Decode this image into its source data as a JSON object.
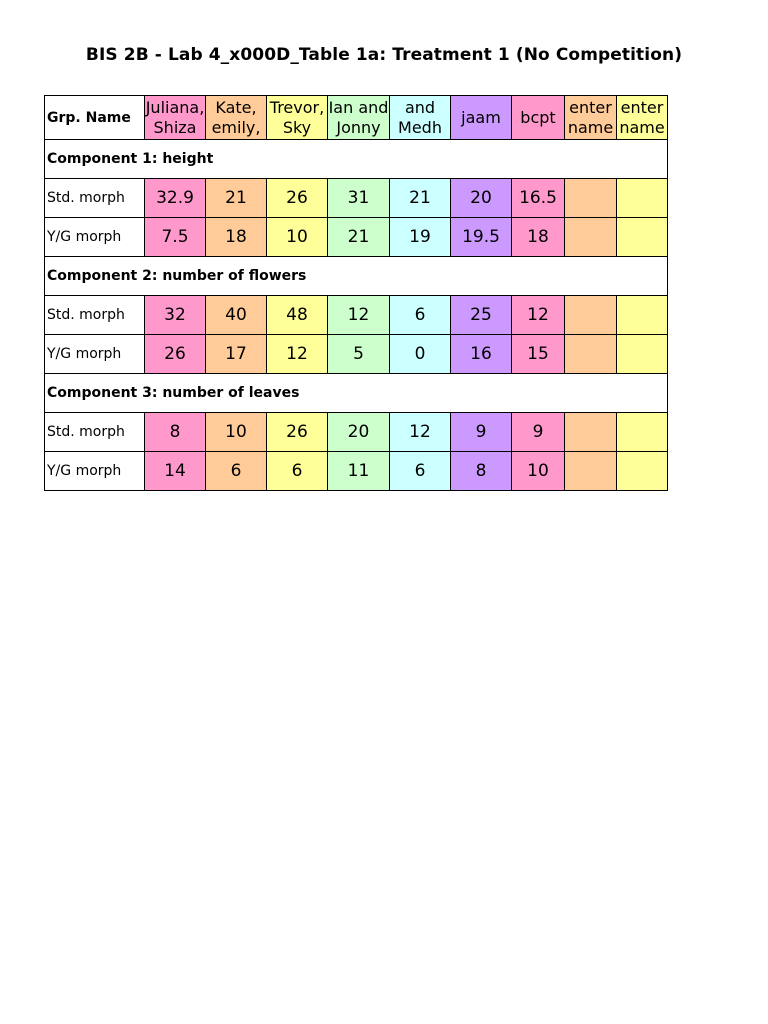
{
  "title": "BIS 2B - Lab 4_x000D_Table 1a: Treatment 1 (No Competition)",
  "header_label": "Grp. Name",
  "groups": [
    {
      "name": "Juliana, Shiza",
      "color": "#ff99cc"
    },
    {
      "name": "Kate, emily,",
      "color": "#ffcc99"
    },
    {
      "name": "Trevor, Sky",
      "color": "#ffff99"
    },
    {
      "name": "Ian and Jonny",
      "color": "#ccffcc"
    },
    {
      "name": "and Medh",
      "color": "#ccffff"
    },
    {
      "name": "jaam",
      "color": "#cc99ff"
    },
    {
      "name": "bcpt",
      "color": "#ff99cc"
    },
    {
      "name": "enter name",
      "color": "#ffcc99"
    },
    {
      "name": "enter name",
      "color": "#ffff99"
    }
  ],
  "components": [
    {
      "title": "Component 1: height",
      "rows": [
        {
          "label": "Std. morph",
          "values": [
            "32.9",
            "21",
            "26",
            "31",
            "21",
            "20",
            "16.5",
            "",
            ""
          ]
        },
        {
          "label": "Y/G morph",
          "values": [
            "7.5",
            "18",
            "10",
            "21",
            "19",
            "19.5",
            "18",
            "",
            ""
          ]
        }
      ]
    },
    {
      "title": "Component 2: number of flowers",
      "rows": [
        {
          "label": "Std. morph",
          "values": [
            "32",
            "40",
            "48",
            "12",
            "6",
            "25",
            "12",
            "",
            ""
          ]
        },
        {
          "label": "Y/G morph",
          "values": [
            "26",
            "17",
            "12",
            "5",
            "0",
            "16",
            "15",
            "",
            ""
          ]
        }
      ]
    },
    {
      "title": "Component 3: number of leaves",
      "rows": [
        {
          "label": "Std. morph",
          "values": [
            "8",
            "10",
            "26",
            "20",
            "12",
            "9",
            "9",
            "",
            ""
          ]
        },
        {
          "label": "Y/G morph",
          "values": [
            "14",
            "6",
            "6",
            "11",
            "6",
            "8",
            "10",
            "",
            ""
          ]
        }
      ]
    }
  ]
}
